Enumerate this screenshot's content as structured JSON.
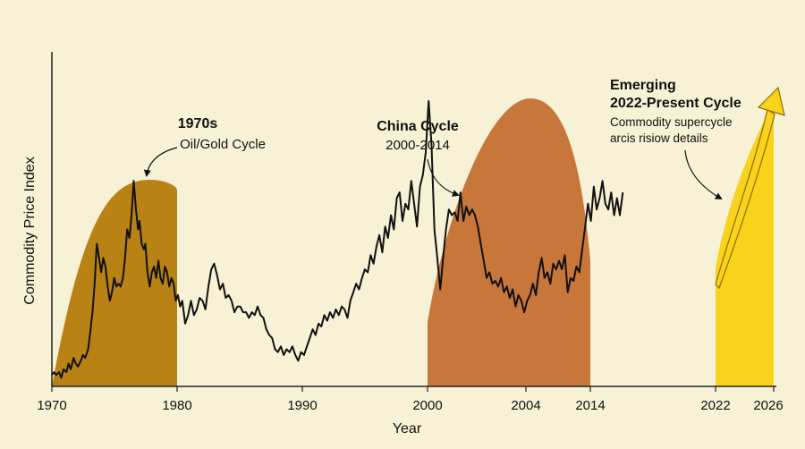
{
  "chart_data": {
    "type": "line",
    "title": "",
    "xlabel": "Year",
    "ylabel": "Commodity Price Index",
    "x_tick_labels": [
      "1970",
      "1980",
      "1990",
      "2000",
      "2004",
      "2014",
      "2022",
      "2026"
    ],
    "y_range": [
      0,
      100
    ],
    "grid": false,
    "legend": "none",
    "cycles": [
      {
        "title": "1970s",
        "subtitle": "Oil/Gold Cycle",
        "start": "1970",
        "end": "1980",
        "color": "#b98215"
      },
      {
        "title": "China Cycle",
        "subtitle": "2000-2014",
        "start": "2000",
        "end": "2014",
        "color": "#c8773a"
      },
      {
        "title_line1": "Emerging",
        "title_line2": "2022-Present Cycle",
        "note_line1": "Commodity supercycle",
        "note_line2": "arcis risiow details",
        "start": "2022",
        "end": "2026",
        "color": "#f9d21c"
      }
    ],
    "series": [
      {
        "values": [
          [
            0,
            4
          ],
          [
            0.3,
            5
          ],
          [
            0.6,
            4
          ],
          [
            1,
            5
          ],
          [
            1.3,
            3
          ],
          [
            1.6,
            6
          ],
          [
            2,
            5
          ],
          [
            2.3,
            8
          ],
          [
            2.6,
            6
          ],
          [
            3,
            10
          ],
          [
            3.3,
            8
          ],
          [
            3.6,
            7
          ],
          [
            4,
            9
          ],
          [
            4.3,
            11
          ],
          [
            4.6,
            10
          ],
          [
            5,
            13
          ],
          [
            5.3,
            19
          ],
          [
            5.6,
            26
          ],
          [
            5.9,
            36
          ],
          [
            6.2,
            50
          ],
          [
            6.5,
            45
          ],
          [
            6.8,
            40
          ],
          [
            7.1,
            45
          ],
          [
            7.4,
            42
          ],
          [
            7.7,
            35
          ],
          [
            8,
            30
          ],
          [
            8.3,
            33
          ],
          [
            8.6,
            38
          ],
          [
            8.9,
            35
          ],
          [
            9.2,
            36
          ],
          [
            9.5,
            35
          ],
          [
            9.8,
            38
          ],
          [
            10.1,
            45
          ],
          [
            10.4,
            55
          ],
          [
            10.7,
            52
          ],
          [
            11,
            60
          ],
          [
            11.3,
            72
          ],
          [
            11.6,
            62
          ],
          [
            11.9,
            55
          ],
          [
            12.1,
            58
          ],
          [
            12.4,
            50
          ],
          [
            12.7,
            48
          ],
          [
            12.9,
            50
          ],
          [
            13.2,
            40
          ],
          [
            13.5,
            35
          ],
          [
            13.8,
            40
          ],
          [
            14.1,
            42
          ],
          [
            14.4,
            38
          ],
          [
            14.7,
            44
          ],
          [
            15,
            38
          ],
          [
            15.3,
            36
          ],
          [
            15.6,
            42
          ],
          [
            15.9,
            40
          ],
          [
            16.2,
            35
          ],
          [
            16.5,
            38
          ],
          [
            16.8,
            36
          ],
          [
            17.1,
            30
          ],
          [
            17.4,
            32
          ],
          [
            17.7,
            28
          ],
          [
            18,
            30
          ],
          [
            18.4,
            22
          ],
          [
            18.8,
            25
          ],
          [
            19.2,
            30
          ],
          [
            19.6,
            25
          ],
          [
            20,
            27
          ],
          [
            20.4,
            31
          ],
          [
            20.8,
            30
          ],
          [
            21.2,
            27
          ],
          [
            21.6,
            35
          ],
          [
            22,
            41
          ],
          [
            22.4,
            43
          ],
          [
            22.8,
            39
          ],
          [
            23.2,
            34
          ],
          [
            23.6,
            36
          ],
          [
            24,
            31
          ],
          [
            24.4,
            32
          ],
          [
            24.8,
            30
          ],
          [
            25.2,
            26
          ],
          [
            25.6,
            28
          ],
          [
            26,
            28
          ],
          [
            26.4,
            26
          ],
          [
            26.8,
            26
          ],
          [
            27.2,
            24
          ],
          [
            27.6,
            26
          ],
          [
            28,
            25
          ],
          [
            28.4,
            28
          ],
          [
            28.8,
            25
          ],
          [
            29.2,
            24
          ],
          [
            29.6,
            20
          ],
          [
            30,
            18
          ],
          [
            30.4,
            17
          ],
          [
            30.8,
            13
          ],
          [
            31.2,
            12
          ],
          [
            31.6,
            14
          ],
          [
            32,
            11
          ],
          [
            32.4,
            13
          ],
          [
            32.8,
            12
          ],
          [
            33.2,
            14
          ],
          [
            33.6,
            11
          ],
          [
            34,
            9
          ],
          [
            34.4,
            12
          ],
          [
            34.8,
            11
          ],
          [
            35.2,
            14
          ],
          [
            35.6,
            17
          ],
          [
            36,
            20
          ],
          [
            36.4,
            18
          ],
          [
            36.8,
            22
          ],
          [
            37.2,
            21
          ],
          [
            37.6,
            25
          ],
          [
            38,
            23
          ],
          [
            38.4,
            26
          ],
          [
            38.8,
            24
          ],
          [
            39.2,
            27
          ],
          [
            39.6,
            25
          ],
          [
            40,
            28
          ],
          [
            40.4,
            27
          ],
          [
            40.8,
            24
          ],
          [
            41.2,
            30
          ],
          [
            41.6,
            33
          ],
          [
            42,
            36
          ],
          [
            42.4,
            34
          ],
          [
            42.8,
            38
          ],
          [
            43.2,
            41
          ],
          [
            43.6,
            40
          ],
          [
            44,
            46
          ],
          [
            44.4,
            43
          ],
          [
            44.8,
            49
          ],
          [
            45.2,
            53
          ],
          [
            45.6,
            47
          ],
          [
            46,
            56
          ],
          [
            46.4,
            52
          ],
          [
            46.8,
            60
          ],
          [
            47.2,
            55
          ],
          [
            47.6,
            66
          ],
          [
            48,
            68
          ],
          [
            48.4,
            58
          ],
          [
            48.8,
            64
          ],
          [
            49.2,
            62
          ],
          [
            49.6,
            72
          ],
          [
            50,
            64
          ],
          [
            50.4,
            56
          ],
          [
            50.8,
            70
          ],
          [
            51.2,
            74
          ],
          [
            51.6,
            82
          ],
          [
            52,
            100
          ],
          [
            52.4,
            85
          ],
          [
            52.8,
            55
          ],
          [
            53.2,
            45
          ],
          [
            53.6,
            34
          ],
          [
            54,
            45
          ],
          [
            54.4,
            55
          ],
          [
            54.8,
            62
          ],
          [
            55.2,
            60
          ],
          [
            55.6,
            61
          ],
          [
            56,
            58
          ],
          [
            56.4,
            68
          ],
          [
            56.8,
            58
          ],
          [
            57.2,
            63
          ],
          [
            57.6,
            60
          ],
          [
            58,
            62
          ],
          [
            58.4,
            60
          ],
          [
            58.8,
            56
          ],
          [
            59.2,
            50
          ],
          [
            59.6,
            44
          ],
          [
            60,
            38
          ],
          [
            60.4,
            40
          ],
          [
            60.8,
            36
          ],
          [
            61.2,
            37
          ],
          [
            61.6,
            35
          ],
          [
            62,
            38
          ],
          [
            62.4,
            33
          ],
          [
            62.8,
            35
          ],
          [
            63.2,
            31
          ],
          [
            63.6,
            34
          ],
          [
            64,
            28
          ],
          [
            64.4,
            32
          ],
          [
            64.8,
            30
          ],
          [
            65.2,
            26
          ],
          [
            65.6,
            30
          ],
          [
            66,
            32
          ],
          [
            66.4,
            36
          ],
          [
            66.8,
            32
          ],
          [
            67.2,
            40
          ],
          [
            67.6,
            45
          ],
          [
            68,
            38
          ],
          [
            68.4,
            40
          ],
          [
            68.8,
            36
          ],
          [
            69.2,
            43
          ],
          [
            69.6,
            41
          ],
          [
            70,
            44
          ],
          [
            70.4,
            41
          ],
          [
            70.8,
            46
          ],
          [
            71.2,
            33
          ],
          [
            71.6,
            38
          ],
          [
            72,
            37
          ],
          [
            72.4,
            42
          ],
          [
            72.8,
            40
          ],
          [
            73.2,
            48
          ],
          [
            73.6,
            56
          ],
          [
            74,
            64
          ],
          [
            74.4,
            58
          ],
          [
            74.8,
            70
          ],
          [
            75.2,
            62
          ],
          [
            75.6,
            66
          ],
          [
            76,
            72
          ],
          [
            76.4,
            64
          ],
          [
            76.8,
            62
          ],
          [
            77.2,
            68
          ],
          [
            77.6,
            60
          ],
          [
            78,
            66
          ],
          [
            78.4,
            60
          ],
          [
            78.8,
            68
          ]
        ]
      }
    ]
  }
}
